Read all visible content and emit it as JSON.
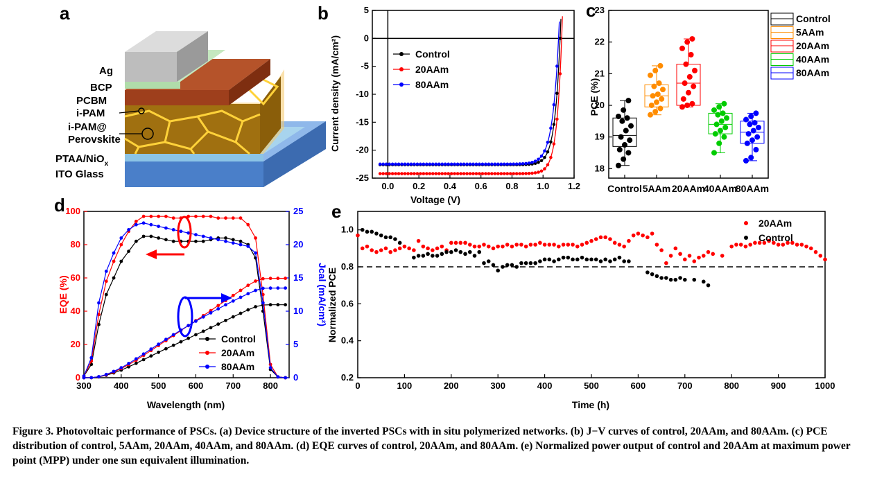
{
  "caption": {
    "label": "Figure 3.",
    "text": "Photovoltaic performance of PSCs. (a) Device structure of the inverted PSCs with in situ polymerized networks. (b) J−V curves of control, 20AAm, and 80AAm. (c) PCE distribution of control, 5AAm, 20AAm, 40AAm, and 80AAm. (d) EQE curves of control, 20AAm, and 80AAm. (e) Normalized power output of control and 20AAm at maximum power point (MPP) under one sun equivalent illumination."
  },
  "panel_labels": {
    "a": "a",
    "b": "b",
    "c": "c",
    "d": "d",
    "e": "e"
  },
  "device": {
    "layers": [
      "Ag",
      "BCP",
      "PCBM",
      "i-PAM",
      "i-PAM@",
      "Perovskite",
      "PTAA/NiO",
      "x",
      "ITO Glass"
    ]
  },
  "colors": {
    "control": "#000000",
    "20AAm": "#ff0000",
    "80AAm": "#0000ff",
    "5AAm": "#ff8c00",
    "40AAm": "#00cc00"
  },
  "chart_data": [
    {
      "id": "b",
      "type": "line",
      "xlabel": "Voltage (V)",
      "ylabel": "Current density (mA/cm²)",
      "xlim": [
        -0.1,
        1.2
      ],
      "ylim": [
        -25,
        5
      ],
      "xticks": [
        "0.0",
        "0.2",
        "0.4",
        "0.6",
        "0.8",
        "1.0",
        "1.2"
      ],
      "yticks": [
        "5",
        "0",
        "-5",
        "-10",
        "-15",
        "-20",
        "-25"
      ],
      "series": [
        {
          "name": "Control",
          "color": "#000000",
          "jsc": -22.6,
          "voc": 1.11,
          "n": 0.035
        },
        {
          "name": "20AAm",
          "color": "#ff0000",
          "jsc": -24.2,
          "voc": 1.12,
          "n": 0.033
        },
        {
          "name": "80AAm",
          "color": "#0000ff",
          "jsc": -22.5,
          "voc": 1.1,
          "n": 0.04
        }
      ]
    },
    {
      "id": "c",
      "type": "box",
      "ylabel": "PCE (%)",
      "ylim": [
        17.7,
        23
      ],
      "yticks": [
        "18",
        "19",
        "20",
        "21",
        "22",
        "23"
      ],
      "categories": [
        "Control",
        "5AAm",
        "20AAm",
        "40AAm",
        "80AAm"
      ],
      "legend": [
        "Control",
        "5AAm",
        "20AAm",
        "40AAm",
        "80AAm"
      ],
      "series": [
        {
          "name": "Control",
          "color": "#000000",
          "q1": 18.7,
          "median": 19.05,
          "q3": 19.6,
          "min": 18.1,
          "max": 20.15,
          "points": [
            18.1,
            18.3,
            18.5,
            18.6,
            18.75,
            18.9,
            19.0,
            19.2,
            19.35,
            19.5,
            19.6,
            19.65,
            19.85,
            20.15
          ]
        },
        {
          "name": "5AAm",
          "color": "#ff8c00",
          "q1": 19.95,
          "median": 20.3,
          "q3": 20.65,
          "min": 19.7,
          "max": 21.25,
          "points": [
            19.7,
            19.8,
            19.9,
            20.0,
            20.1,
            20.2,
            20.3,
            20.35,
            20.5,
            20.6,
            20.7,
            20.95,
            21.1,
            21.25
          ]
        },
        {
          "name": "20AAm",
          "color": "#ff0000",
          "q1": 20.0,
          "median": 20.7,
          "q3": 21.3,
          "min": 19.95,
          "max": 22.1,
          "points": [
            19.95,
            20.0,
            20.05,
            20.2,
            20.4,
            20.6,
            20.7,
            20.9,
            21.1,
            21.3,
            21.6,
            21.8,
            22.0,
            22.1
          ]
        },
        {
          "name": "40AAm",
          "color": "#00cc00",
          "q1": 19.1,
          "median": 19.4,
          "q3": 19.75,
          "min": 18.5,
          "max": 20.05,
          "points": [
            18.5,
            18.8,
            19.0,
            19.1,
            19.2,
            19.3,
            19.4,
            19.5,
            19.6,
            19.7,
            19.75,
            19.85,
            19.95,
            20.05
          ]
        },
        {
          "name": "80AAm",
          "color": "#0000ff",
          "q1": 18.8,
          "median": 19.15,
          "q3": 19.5,
          "min": 18.25,
          "max": 19.75,
          "points": [
            18.25,
            18.35,
            18.6,
            18.8,
            18.9,
            19.0,
            19.1,
            19.2,
            19.3,
            19.4,
            19.45,
            19.55,
            19.65,
            19.75
          ]
        }
      ]
    },
    {
      "id": "d",
      "type": "line",
      "xlabel": "Wavelength (nm)",
      "ylabel": "EQE (%)",
      "y2label": "Jcal (mA/cm²)",
      "xlim": [
        300,
        850
      ],
      "ylim": [
        0,
        100
      ],
      "y2lim": [
        0,
        25
      ],
      "xticks": [
        "300",
        "400",
        "500",
        "600",
        "700",
        "800"
      ],
      "yticks": [
        "0",
        "20",
        "40",
        "60",
        "80",
        "100"
      ],
      "y2ticks": [
        "0",
        "5",
        "10",
        "15",
        "20",
        "25"
      ],
      "x": [
        300,
        320,
        340,
        360,
        380,
        400,
        420,
        440,
        460,
        480,
        500,
        520,
        540,
        560,
        580,
        600,
        620,
        640,
        660,
        680,
        700,
        720,
        740,
        760,
        780,
        800,
        820,
        840
      ],
      "series": [
        {
          "name": "Control",
          "color": "#000000",
          "eqe": [
            1,
            8,
            32,
            50,
            60,
            70,
            76,
            82,
            85,
            85,
            84,
            83,
            82,
            82,
            82,
            82,
            82,
            83,
            84,
            84,
            83,
            82,
            80,
            72,
            40,
            5,
            0.5,
            0
          ],
          "jsc": [
            0,
            0.01,
            0.12,
            0.37,
            0.73,
            1.15,
            1.64,
            2.17,
            2.72,
            3.27,
            3.82,
            4.35,
            4.88,
            5.4,
            5.93,
            6.46,
            6.99,
            7.52,
            8.06,
            8.61,
            9.15,
            9.68,
            10.2,
            10.67,
            10.93,
            10.97,
            10.97,
            10.97
          ]
        },
        {
          "name": "20AAm",
          "color": "#ff0000",
          "eqe": [
            1,
            10,
            38,
            58,
            70,
            80,
            88,
            94,
            97,
            97,
            97,
            97,
            96,
            96,
            97,
            97,
            97,
            97,
            96,
            96,
            96,
            96,
            92,
            84,
            50,
            8,
            0.5,
            0
          ],
          "jsc": [
            0,
            0.01,
            0.14,
            0.43,
            0.86,
            1.38,
            1.97,
            2.63,
            3.35,
            4.09,
            4.84,
            5.58,
            6.33,
            7.09,
            7.83,
            8.58,
            9.33,
            10.09,
            10.85,
            11.6,
            12.37,
            13.13,
            13.89,
            14.53,
            14.88,
            14.93,
            14.94,
            14.94
          ]
        },
        {
          "name": "80AAm",
          "color": "#0000ff",
          "eqe": [
            1,
            12,
            45,
            64,
            75,
            84,
            89,
            92,
            93,
            92,
            91,
            90,
            89,
            88,
            87,
            86,
            85,
            84,
            83,
            82,
            81,
            80,
            79,
            75,
            45,
            6,
            0.5,
            0
          ],
          "jsc": [
            0,
            0.01,
            0.16,
            0.49,
            0.95,
            1.5,
            2.14,
            2.84,
            3.57,
            4.31,
            5.04,
            5.76,
            6.47,
            7.16,
            7.84,
            8.5,
            9.13,
            9.75,
            10.36,
            10.96,
            11.53,
            12.09,
            12.63,
            13.12,
            13.44,
            13.47,
            13.48,
            13.48
          ]
        }
      ],
      "legend": [
        "Control",
        "20AAm",
        "80AAm"
      ]
    },
    {
      "id": "e",
      "type": "scatter",
      "xlabel": "Time (h)",
      "ylabel": "Normalized PCE",
      "xlim": [
        0,
        1000
      ],
      "ylim": [
        0.2,
        1.1
      ],
      "xticks": [
        "0",
        "100",
        "200",
        "300",
        "400",
        "500",
        "600",
        "700",
        "800",
        "900",
        "1000"
      ],
      "yticks": [
        "0.2",
        "0.4",
        "0.6",
        "0.8",
        "1.0"
      ],
      "reference_line": 0.8,
      "legend": [
        "20AAm",
        "Control"
      ],
      "series": [
        {
          "name": "20AAm",
          "color": "#ff0000",
          "x": [
            0,
            10,
            20,
            30,
            40,
            50,
            60,
            70,
            80,
            90,
            100,
            110,
            120,
            130,
            140,
            150,
            160,
            170,
            180,
            190,
            200,
            210,
            220,
            230,
            240,
            250,
            260,
            270,
            280,
            290,
            300,
            310,
            320,
            330,
            340,
            350,
            360,
            370,
            380,
            390,
            400,
            410,
            420,
            430,
            440,
            450,
            460,
            470,
            480,
            490,
            500,
            510,
            520,
            530,
            540,
            550,
            560,
            570,
            580,
            590,
            600,
            610,
            620,
            630,
            640,
            650,
            660,
            670,
            680,
            690,
            700,
            710,
            720,
            730,
            740,
            750,
            760,
            780,
            800,
            810,
            820,
            830,
            840,
            850,
            860,
            870,
            880,
            890,
            900,
            910,
            920,
            930,
            940,
            950,
            960,
            970,
            980,
            990,
            1000
          ],
          "y": [
            0.97,
            0.9,
            0.91,
            0.89,
            0.88,
            0.89,
            0.9,
            0.88,
            0.89,
            0.9,
            0.91,
            0.9,
            0.89,
            0.94,
            0.91,
            0.9,
            0.89,
            0.9,
            0.91,
            0.89,
            0.93,
            0.93,
            0.93,
            0.93,
            0.92,
            0.91,
            0.91,
            0.92,
            0.91,
            0.9,
            0.91,
            0.91,
            0.92,
            0.91,
            0.92,
            0.92,
            0.91,
            0.92,
            0.92,
            0.93,
            0.92,
            0.92,
            0.92,
            0.91,
            0.92,
            0.92,
            0.92,
            0.91,
            0.92,
            0.93,
            0.94,
            0.95,
            0.96,
            0.96,
            0.95,
            0.93,
            0.92,
            0.91,
            0.94,
            0.97,
            0.98,
            0.97,
            0.96,
            0.98,
            0.92,
            0.89,
            0.82,
            0.86,
            0.9,
            0.87,
            0.84,
            0.86,
            0.83,
            0.85,
            0.86,
            0.88,
            0.87,
            0.86,
            0.91,
            0.92,
            0.92,
            0.91,
            0.92,
            0.93,
            0.93,
            0.93,
            0.94,
            0.93,
            0.92,
            0.92,
            0.93,
            0.93,
            0.92,
            0.92,
            0.91,
            0.9,
            0.88,
            0.86,
            0.84
          ]
        },
        {
          "name": "Control",
          "color": "#000000",
          "x": [
            10,
            20,
            30,
            40,
            50,
            60,
            70,
            80,
            90,
            120,
            130,
            140,
            150,
            160,
            170,
            180,
            190,
            200,
            210,
            220,
            230,
            240,
            250,
            260,
            270,
            280,
            290,
            300,
            310,
            320,
            330,
            340,
            350,
            360,
            370,
            380,
            390,
            400,
            410,
            420,
            430,
            440,
            450,
            460,
            470,
            480,
            490,
            500,
            510,
            520,
            530,
            540,
            550,
            560,
            570,
            580,
            620,
            630,
            640,
            650,
            660,
            670,
            680,
            690,
            700,
            720,
            740,
            750
          ],
          "y": [
            1.0,
            0.99,
            0.99,
            0.98,
            0.97,
            0.96,
            0.96,
            0.95,
            0.93,
            0.85,
            0.86,
            0.86,
            0.87,
            0.86,
            0.86,
            0.87,
            0.88,
            0.88,
            0.89,
            0.88,
            0.87,
            0.88,
            0.86,
            0.88,
            0.82,
            0.83,
            0.81,
            0.78,
            0.8,
            0.81,
            0.81,
            0.8,
            0.82,
            0.82,
            0.82,
            0.82,
            0.83,
            0.84,
            0.84,
            0.83,
            0.84,
            0.85,
            0.85,
            0.84,
            0.84,
            0.85,
            0.84,
            0.84,
            0.84,
            0.83,
            0.84,
            0.83,
            0.84,
            0.85,
            0.83,
            0.83,
            0.77,
            0.76,
            0.75,
            0.74,
            0.74,
            0.73,
            0.73,
            0.74,
            0.73,
            0.73,
            0.72,
            0.7
          ]
        }
      ]
    }
  ]
}
